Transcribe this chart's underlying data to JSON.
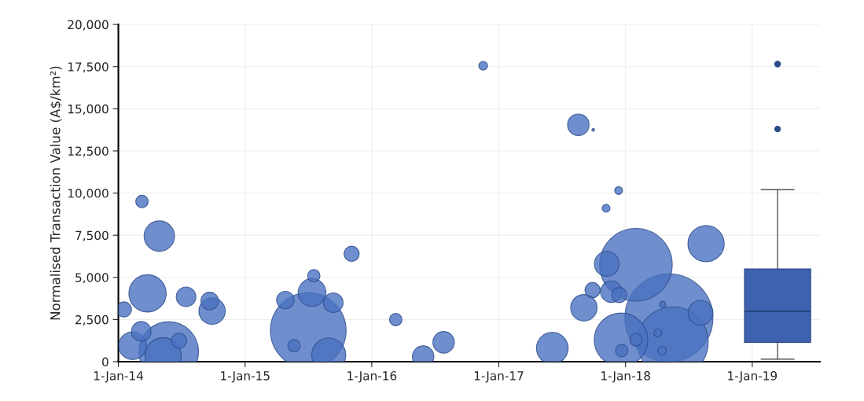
{
  "chart_data": {
    "type": "bubble",
    "ylabel": "Normalised Transaction Value (A$/km²)",
    "xlim": [
      "2014-01-01",
      "2019-07-15"
    ],
    "xticks": [
      {
        "value": "2014-01-01",
        "label": "1-Jan-14"
      },
      {
        "value": "2015-01-01",
        "label": "1-Jan-15"
      },
      {
        "value": "2016-01-01",
        "label": "1-Jan-16"
      },
      {
        "value": "2017-01-01",
        "label": "1-Jan-17"
      },
      {
        "value": "2018-01-01",
        "label": "1-Jan-18"
      },
      {
        "value": "2019-01-01",
        "label": "1-Jan-19"
      }
    ],
    "ylim": [
      0,
      20000
    ],
    "yticks": [
      {
        "value": 0,
        "label": "0"
      },
      {
        "value": 2500,
        "label": "2,500"
      },
      {
        "value": 5000,
        "label": "5,000"
      },
      {
        "value": 7500,
        "label": "7,500"
      },
      {
        "value": 10000,
        "label": "10,000"
      },
      {
        "value": 12500,
        "label": "12,500"
      },
      {
        "value": 15000,
        "label": "15,000"
      },
      {
        "value": 17500,
        "label": "17,500"
      },
      {
        "value": 20000,
        "label": "20,000"
      }
    ],
    "grid": true,
    "series": [
      {
        "color": "#4a72c0",
        "x": [
          "2014-01-17",
          "2014-03-10",
          "2014-04-29",
          "2014-03-26",
          "2014-07-15",
          "2014-09-21",
          "2014-09-28",
          "2014-03-08",
          "2014-02-11",
          "2014-05-26",
          "2014-05-10",
          "2014-06-25",
          "2015-04-27",
          "2015-07-13",
          "2015-07-18",
          "2015-09-12",
          "2015-07-02",
          "2015-05-22",
          "2015-08-30",
          "2015-11-04",
          "2016-03-10",
          "2016-07-26",
          "2016-05-28",
          "2016-11-17",
          "2017-06-04",
          "2017-08-18",
          "2017-09-30",
          "2017-12-12",
          "2017-11-06",
          "2017-09-03",
          "2017-09-28",
          "2017-11-08",
          "2017-11-21",
          "2017-12-14",
          "2018-01-31",
          "2018-05-06",
          "2018-05-17",
          "2017-12-19",
          "2018-08-05",
          "2018-08-21",
          "2018-04-18",
          "2018-04-04",
          "2018-04-16",
          "2017-12-21",
          "2018-01-31"
        ],
        "values": [
          3100,
          9500,
          7450,
          4050,
          3850,
          3600,
          3000,
          1800,
          950,
          600,
          350,
          1250,
          3650,
          4100,
          5100,
          3500,
          1850,
          950,
          400,
          6400,
          2500,
          1150,
          300,
          17550,
          800,
          14050,
          13750,
          10150,
          9100,
          3200,
          4250,
          5800,
          4150,
          3950,
          5750,
          2600,
          1150,
          1300,
          2900,
          7000,
          3400,
          1700,
          650,
          650,
          1300
        ],
        "sizes": [
          0.03,
          0.02,
          0.12,
          0.18,
          0.05,
          0.04,
          0.09,
          0.05,
          0.1,
          0.46,
          0.17,
          0.03,
          0.04,
          0.1,
          0.02,
          0.05,
          0.74,
          0.02,
          0.15,
          0.03,
          0.02,
          0.06,
          0.06,
          0.01,
          0.13,
          0.06,
          0.001,
          0.008,
          0.008,
          0.09,
          0.03,
          0.08,
          0.06,
          0.03,
          0.68,
          1,
          0.65,
          0.37,
          0.08,
          0.17,
          0.005,
          0.008,
          0.01,
          0.02,
          0.02
        ]
      },
      {
        "type": "box",
        "color": "#3f62b0",
        "x": [
          "2019-03-15"
        ],
        "boxes": [
          {
            "low": 150,
            "q1": 1150,
            "median": 3000,
            "q3": 5500,
            "high": 10200,
            "outliers": [
              13800,
              17650
            ]
          }
        ]
      }
    ]
  }
}
